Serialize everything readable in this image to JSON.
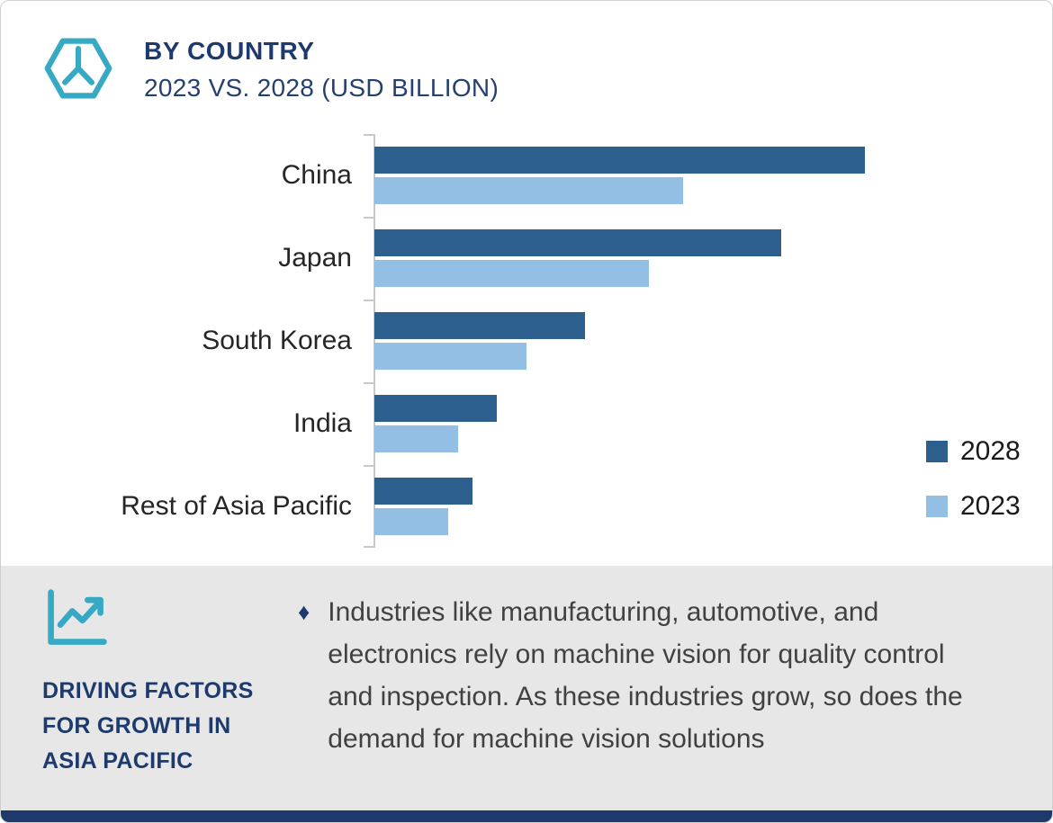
{
  "header": {
    "title": "BY COUNTRY",
    "subtitle": "2023 VS. 2028 (USD BILLION)"
  },
  "chart_data": {
    "type": "bar",
    "orientation": "horizontal",
    "title": "BY COUNTRY",
    "subtitle": "2023 VS. 2028 (USD BILLION)",
    "categories": [
      "China",
      "Japan",
      "South Korea",
      "India",
      "Rest of Asia Pacific"
    ],
    "series": [
      {
        "name": "2028",
        "color": "#2d5f8e",
        "values": [
          100,
          83,
          43,
          25,
          20
        ]
      },
      {
        "name": "2023",
        "color": "#93bfe4",
        "values": [
          63,
          56,
          31,
          17,
          15
        ]
      }
    ],
    "xlabel": "",
    "ylabel": "",
    "xlim": [
      0,
      100
    ],
    "value_scale": "relative, longest bar (China 2028) = 100; no numeric axis labels shown",
    "grid": false,
    "legend_position": "right"
  },
  "footer": {
    "bullet_glyph": "♦",
    "heading": "DRIVING FACTORS FOR GROWTH IN ASIA PACIFIC",
    "text": "Industries like manufacturing, automotive, and electronics rely on machine vision for quality control and inspection. As these industries grow, so does the demand for machine vision solutions"
  },
  "colors": {
    "navy": "#1d3a6e",
    "teal": "#36a9c4",
    "bar_2028": "#2d5f8e",
    "bar_2023": "#93bfe4",
    "band_bg": "#e7e7e7",
    "axis": "#c8c8c8"
  }
}
